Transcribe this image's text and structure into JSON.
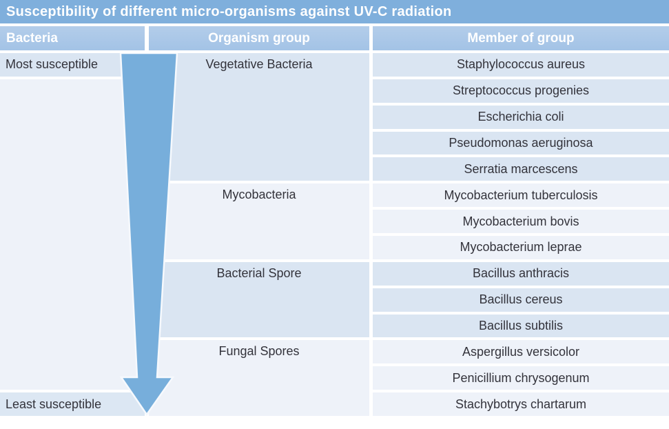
{
  "title": "Susceptibility of different micro-organisms against UV-C radiation",
  "columns": [
    "Bacteria",
    "Organism group",
    "Member of group"
  ],
  "scale": {
    "top_label": "Most susceptible",
    "bottom_label": "Least susceptible"
  },
  "arrow": {
    "direction": "down",
    "meaning": "susceptibility decreases from top to bottom",
    "color": "#77aedb"
  },
  "groups": [
    {
      "name": "Vegetative Bacteria",
      "members": [
        "Staphylococcus aureus",
        "Streptococcus progenies",
        "Escherichia coli",
        "Pseudomonas aeruginosa",
        "Serratia marcescens"
      ]
    },
    {
      "name": "Mycobacteria",
      "members": [
        "Mycobacterium tuberculosis",
        "Mycobacterium bovis",
        "Mycobacterium leprae"
      ]
    },
    {
      "name": "Bacterial Spore",
      "members": [
        "Bacillus anthracis",
        "Bacillus cereus",
        "Bacillus subtilis"
      ]
    },
    {
      "name": "Fungal Spores",
      "members": [
        "Aspergillus versicolor",
        "Penicillium chrysogenum",
        "Stachybotrys chartarum"
      ]
    }
  ],
  "colors": {
    "title_bar": "#7fafdc",
    "header": "#a9c7e8",
    "band_blue": "#dae5f2",
    "band_light": "#eef2f9",
    "left_bottom_cell": "#dce7f3",
    "arrow": "#77aedb",
    "body_text": "#33333b"
  },
  "chart_data": {
    "type": "table",
    "title": "Susceptibility of different micro-organisms against UV-C radiation",
    "columns": [
      "Bacteria",
      "Organism group",
      "Member of group"
    ],
    "rows": [
      [
        "Most susceptible",
        "Vegetative Bacteria",
        "Staphylococcus aureus"
      ],
      [
        "",
        "Vegetative Bacteria",
        "Streptococcus progenies"
      ],
      [
        "",
        "Vegetative Bacteria",
        "Escherichia coli"
      ],
      [
        "",
        "Vegetative Bacteria",
        "Pseudomonas aeruginosa"
      ],
      [
        "",
        "Vegetative Bacteria",
        "Serratia marcescens"
      ],
      [
        "",
        "Mycobacteria",
        "Mycobacterium tuberculosis"
      ],
      [
        "",
        "Mycobacteria",
        "Mycobacterium bovis"
      ],
      [
        "",
        "Mycobacteria",
        "Mycobacterium leprae"
      ],
      [
        "",
        "Bacterial Spore",
        "Bacillus anthracis"
      ],
      [
        "",
        "Bacterial Spore",
        "Bacillus cereus"
      ],
      [
        "",
        "Bacterial Spore",
        "Bacillus subtilis"
      ],
      [
        "",
        "Fungal Spores",
        "Aspergillus versicolor"
      ],
      [
        "",
        "Fungal Spores",
        "Penicillium chrysogenum"
      ],
      [
        "Least susceptible",
        "Fungal Spores",
        "Stachybotrys chartarum"
      ]
    ],
    "annotations": [
      "Downward arrow in Bacteria column from Most susceptible to Least susceptible"
    ]
  }
}
